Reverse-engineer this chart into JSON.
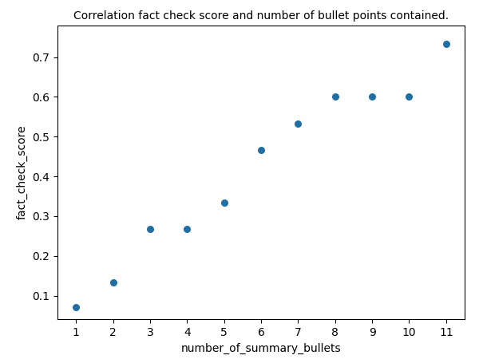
{
  "x": [
    1,
    2,
    3,
    4,
    5,
    6,
    7,
    8,
    9,
    10,
    11
  ],
  "y": [
    0.07,
    0.134,
    0.267,
    0.267,
    0.334,
    0.467,
    0.533,
    0.6,
    0.6,
    0.6,
    0.734
  ],
  "title": "Correlation fact check score and number of bullet points contained.",
  "xlabel": "number_of_summary_bullets",
  "ylabel": "fact_check_score",
  "dot_color": "#1f6fa4",
  "dot_size": 30,
  "xlim": [
    0.5,
    11.5
  ],
  "ylim": [
    0.04,
    0.78
  ],
  "figsize": [
    6.0,
    4.55
  ],
  "dpi": 100,
  "title_fontsize": 10,
  "label_fontsize": 10
}
